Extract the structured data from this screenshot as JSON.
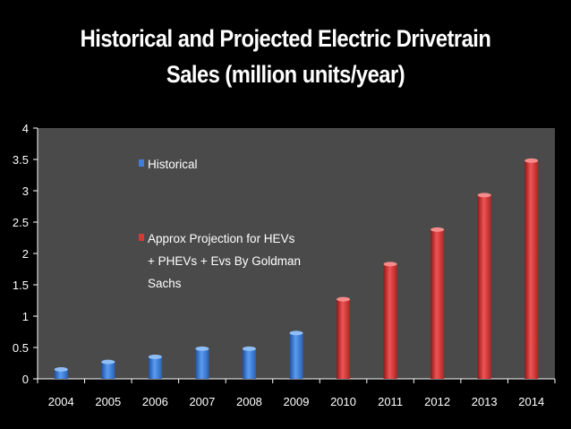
{
  "chart_data": {
    "type": "bar",
    "title_lines": [
      "Historical and Projected Electric Drivetrain",
      "Sales (million units/year)"
    ],
    "categories": [
      "2004",
      "2005",
      "2006",
      "2007",
      "2008",
      "2009",
      "2010",
      "2011",
      "2012",
      "2013",
      "2014"
    ],
    "series": [
      {
        "name": "Historical",
        "color": "#3f7fd9",
        "values": [
          0.15,
          0.27,
          0.35,
          0.48,
          0.48,
          0.73,
          null,
          null,
          null,
          null,
          null
        ]
      },
      {
        "name_lines": [
          "Approx Projection for HEVs",
          "+ PHEVs + Evs By Goldman",
          "Sachs"
        ],
        "color": "#d93636",
        "values": [
          null,
          null,
          null,
          null,
          null,
          null,
          1.27,
          1.83,
          2.38,
          2.93,
          3.48
        ]
      }
    ],
    "yticks": [
      "0",
      "0.5",
      "1",
      "1.5",
      "2",
      "2.5",
      "3",
      "3.5",
      "4"
    ],
    "ylim": [
      0,
      4
    ],
    "xlabel": "",
    "ylabel": "",
    "grid": false,
    "colors": {
      "background": "#000000",
      "plot_area": "#4a4a4a",
      "axis": "#ffffff",
      "text": "#ffffff"
    }
  }
}
